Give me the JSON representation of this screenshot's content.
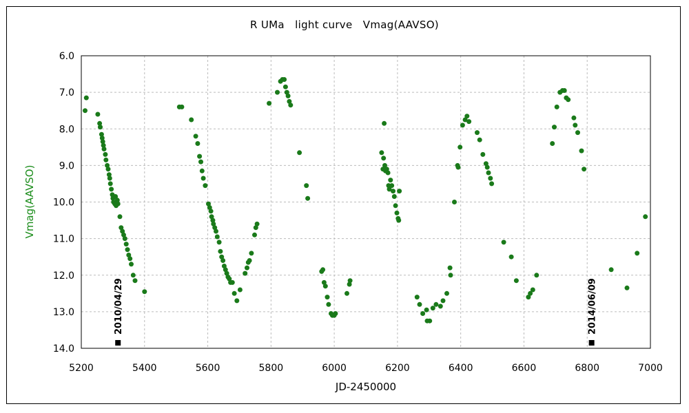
{
  "chart_data": {
    "type": "scatter",
    "title": "R UMa　light curve　Vmag(AAVSO)",
    "xlabel": "JD-2450000",
    "ylabel": "Vmag(AAVSO)",
    "xlim": [
      5200,
      7000
    ],
    "ylim": [
      6.0,
      14.0
    ],
    "y_inverted": true,
    "grid": true,
    "xticks": [
      "5200",
      "5400",
      "5600",
      "5800",
      "6000",
      "6200",
      "6400",
      "6600",
      "6800",
      "7000"
    ],
    "yticks": [
      "6.0",
      "7.0",
      "8.0",
      "9.0",
      "10.0",
      "11.0",
      "12.0",
      "13.0",
      "14.0"
    ],
    "colors": {
      "points": "#1a7a1a",
      "ylabel": "#1a8c1a",
      "grid": "#bbbbbb",
      "marker": "#000000"
    },
    "series": [
      {
        "values_xy": [
          [
            5212,
            7.5
          ],
          [
            5216,
            7.15
          ],
          [
            5252,
            7.6
          ],
          [
            5258,
            7.85
          ],
          [
            5260,
            7.95
          ],
          [
            5264,
            8.15
          ],
          [
            5266,
            8.25
          ],
          [
            5268,
            8.35
          ],
          [
            5270,
            8.45
          ],
          [
            5272,
            8.55
          ],
          [
            5276,
            8.7
          ],
          [
            5278,
            8.85
          ],
          [
            5282,
            9.0
          ],
          [
            5285,
            9.1
          ],
          [
            5288,
            9.25
          ],
          [
            5290,
            9.35
          ],
          [
            5292,
            9.5
          ],
          [
            5295,
            9.65
          ],
          [
            5298,
            9.8
          ],
          [
            5300,
            9.9
          ],
          [
            5302,
            10.0
          ],
          [
            5306,
            10.05
          ],
          [
            5308,
            9.85
          ],
          [
            5310,
            10.1
          ],
          [
            5314,
            9.95
          ],
          [
            5316,
            10.05
          ],
          [
            5322,
            10.4
          ],
          [
            5326,
            10.7
          ],
          [
            5330,
            10.8
          ],
          [
            5334,
            10.9
          ],
          [
            5338,
            11.0
          ],
          [
            5342,
            11.15
          ],
          [
            5346,
            11.3
          ],
          [
            5350,
            11.45
          ],
          [
            5354,
            11.55
          ],
          [
            5358,
            11.7
          ],
          [
            5364,
            12.0
          ],
          [
            5370,
            12.15
          ],
          [
            5400,
            12.45
          ],
          [
            5510,
            7.4
          ],
          [
            5518,
            7.4
          ],
          [
            5548,
            7.75
          ],
          [
            5562,
            8.2
          ],
          [
            5568,
            8.4
          ],
          [
            5574,
            8.75
          ],
          [
            5578,
            8.9
          ],
          [
            5582,
            9.15
          ],
          [
            5586,
            9.35
          ],
          [
            5592,
            9.55
          ],
          [
            5602,
            10.05
          ],
          [
            5606,
            10.15
          ],
          [
            5610,
            10.25
          ],
          [
            5612,
            10.4
          ],
          [
            5616,
            10.5
          ],
          [
            5618,
            10.6
          ],
          [
            5622,
            10.7
          ],
          [
            5626,
            10.8
          ],
          [
            5630,
            10.95
          ],
          [
            5636,
            11.1
          ],
          [
            5640,
            11.35
          ],
          [
            5644,
            11.5
          ],
          [
            5648,
            11.6
          ],
          [
            5652,
            11.75
          ],
          [
            5656,
            11.85
          ],
          [
            5660,
            11.95
          ],
          [
            5664,
            12.05
          ],
          [
            5668,
            12.1
          ],
          [
            5672,
            12.2
          ],
          [
            5678,
            12.2
          ],
          [
            5684,
            12.5
          ],
          [
            5692,
            12.7
          ],
          [
            5702,
            12.4
          ],
          [
            5718,
            11.95
          ],
          [
            5724,
            11.8
          ],
          [
            5728,
            11.65
          ],
          [
            5732,
            11.6
          ],
          [
            5738,
            11.4
          ],
          [
            5748,
            10.9
          ],
          [
            5752,
            10.7
          ],
          [
            5756,
            10.6
          ],
          [
            5794,
            7.3
          ],
          [
            5820,
            7.0
          ],
          [
            5830,
            6.7
          ],
          [
            5836,
            6.65
          ],
          [
            5842,
            6.65
          ],
          [
            5846,
            6.85
          ],
          [
            5850,
            7.0
          ],
          [
            5854,
            7.1
          ],
          [
            5858,
            7.25
          ],
          [
            5862,
            7.35
          ],
          [
            5890,
            8.65
          ],
          [
            5912,
            9.55
          ],
          [
            5916,
            9.9
          ],
          [
            5960,
            11.9
          ],
          [
            5964,
            11.85
          ],
          [
            5968,
            12.2
          ],
          [
            5972,
            12.3
          ],
          [
            5978,
            12.6
          ],
          [
            5982,
            12.8
          ],
          [
            5990,
            13.05
          ],
          [
            5994,
            13.1
          ],
          [
            6000,
            13.1
          ],
          [
            6004,
            13.05
          ],
          [
            6040,
            12.5
          ],
          [
            6048,
            12.25
          ],
          [
            6050,
            12.15
          ],
          [
            6150,
            8.65
          ],
          [
            6154,
            9.1
          ],
          [
            6156,
            8.8
          ],
          [
            6158,
            7.85
          ],
          [
            6160,
            9.0
          ],
          [
            6162,
            9.15
          ],
          [
            6166,
            9.1
          ],
          [
            6170,
            9.2
          ],
          [
            6172,
            9.55
          ],
          [
            6174,
            9.65
          ],
          [
            6178,
            9.4
          ],
          [
            6182,
            9.55
          ],
          [
            6186,
            9.7
          ],
          [
            6190,
            9.85
          ],
          [
            6194,
            10.1
          ],
          [
            6198,
            10.3
          ],
          [
            6202,
            10.45
          ],
          [
            6204,
            10.5
          ],
          [
            6206,
            9.7
          ],
          [
            6262,
            12.6
          ],
          [
            6270,
            12.8
          ],
          [
            6280,
            13.05
          ],
          [
            6292,
            12.95
          ],
          [
            6294,
            13.25
          ],
          [
            6302,
            13.25
          ],
          [
            6312,
            12.9
          ],
          [
            6322,
            12.8
          ],
          [
            6336,
            12.85
          ],
          [
            6344,
            12.7
          ],
          [
            6356,
            12.5
          ],
          [
            6366,
            11.8
          ],
          [
            6368,
            12.0
          ],
          [
            6380,
            10.0
          ],
          [
            6390,
            9.0
          ],
          [
            6392,
            9.05
          ],
          [
            6398,
            8.5
          ],
          [
            6406,
            7.9
          ],
          [
            6414,
            7.75
          ],
          [
            6420,
            7.65
          ],
          [
            6426,
            7.8
          ],
          [
            6452,
            8.1
          ],
          [
            6460,
            8.3
          ],
          [
            6470,
            8.7
          ],
          [
            6480,
            8.95
          ],
          [
            6484,
            9.05
          ],
          [
            6488,
            9.2
          ],
          [
            6494,
            9.35
          ],
          [
            6498,
            9.5
          ],
          [
            6536,
            11.1
          ],
          [
            6560,
            11.5
          ],
          [
            6576,
            12.15
          ],
          [
            6614,
            12.6
          ],
          [
            6620,
            12.5
          ],
          [
            6628,
            12.4
          ],
          [
            6640,
            12.0
          ],
          [
            6690,
            8.4
          ],
          [
            6696,
            7.95
          ],
          [
            6704,
            7.4
          ],
          [
            6714,
            7.0
          ],
          [
            6722,
            6.95
          ],
          [
            6728,
            6.95
          ],
          [
            6734,
            7.15
          ],
          [
            6740,
            7.2
          ],
          [
            6758,
            7.7
          ],
          [
            6762,
            7.9
          ],
          [
            6770,
            8.1
          ],
          [
            6782,
            8.6
          ],
          [
            6790,
            9.1
          ],
          [
            6876,
            11.85
          ],
          [
            6926,
            12.35
          ],
          [
            6958,
            11.4
          ],
          [
            6984,
            10.4
          ]
        ]
      }
    ],
    "annotations": [
      {
        "label": "2010/04/29",
        "x": 5316,
        "y": 13.85
      },
      {
        "label": "2014/06/09",
        "x": 6814,
        "y": 13.85
      }
    ]
  }
}
